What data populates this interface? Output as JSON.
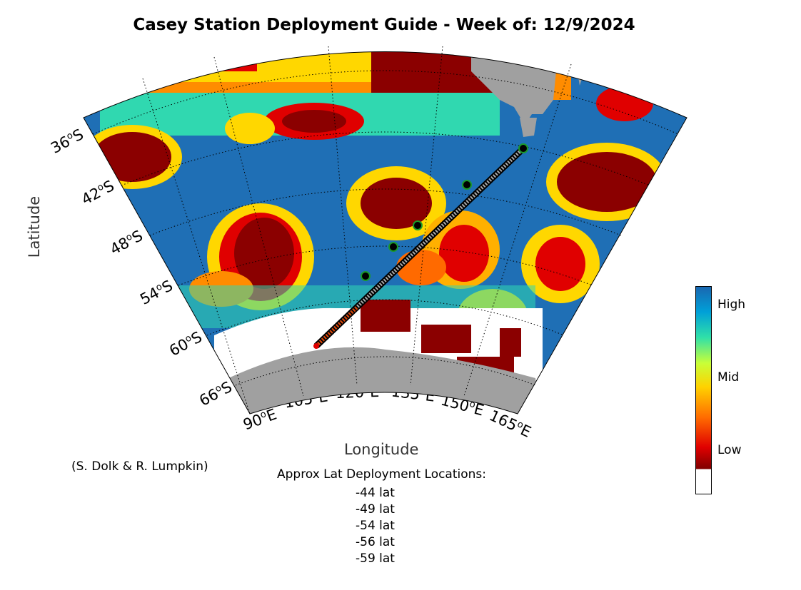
{
  "title": "Casey Station Deployment Guide - Week of: 12/9/2024",
  "axes": {
    "xlabel": "Longitude",
    "ylabel": "Latitude",
    "lat_ticks": [
      {
        "deg": "36",
        "hemi": "S"
      },
      {
        "deg": "42",
        "hemi": "S"
      },
      {
        "deg": "48",
        "hemi": "S"
      },
      {
        "deg": "54",
        "hemi": "S"
      },
      {
        "deg": "60",
        "hemi": "S"
      },
      {
        "deg": "66",
        "hemi": "S"
      }
    ],
    "lon_ticks": [
      {
        "deg": "90",
        "hemi": "E"
      },
      {
        "deg": "105",
        "hemi": "E"
      },
      {
        "deg": "120",
        "hemi": "E"
      },
      {
        "deg": "135",
        "hemi": "E"
      },
      {
        "deg": "150",
        "hemi": "E"
      },
      {
        "deg": "165",
        "hemi": "E"
      }
    ]
  },
  "credit": "(S. Dolk & R. Lumpkin)",
  "deployment": {
    "heading": "Approx Lat Deployment Locations:",
    "items": [
      "-44 lat",
      "-49 lat",
      "-54 lat",
      "-56 lat",
      "-59 lat"
    ]
  },
  "colorbar": {
    "labels": {
      "high": "High",
      "mid": "Mid",
      "low": "Low"
    },
    "colors": [
      "#7f0000",
      "#e00000",
      "#ff6a00",
      "#ffd200",
      "#c8ff38",
      "#30e0a8",
      "#00a0d8",
      "#1a66b0"
    ]
  },
  "colors": {
    "land": "#a0a0a0",
    "ice": "#ffffff",
    "high": "#1f6fb5",
    "low": "#8b0000",
    "track_marker": "#1a9a2a"
  }
}
